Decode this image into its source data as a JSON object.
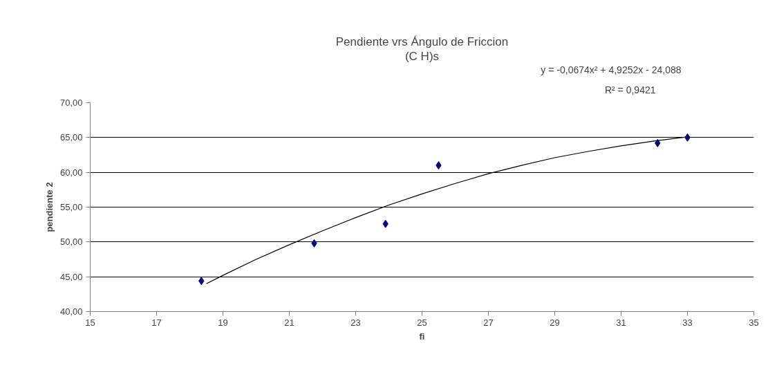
{
  "chart_data": {
    "type": "scatter",
    "title": "Pendiente vrs Ángulo de Friccion",
    "subtitle": "(C H)s",
    "xlabel": "fi",
    "ylabel": "pendiente 2",
    "annotations": [
      "y = -0,0674x² + 4,9252x - 24,088",
      "R² = 0,9421"
    ],
    "series": [
      {
        "color": "#000080",
        "marker": "diamond",
        "x": [
          18.35,
          21.75,
          23.9,
          25.5,
          32.1,
          33.0
        ],
        "values": [
          44.4,
          49.8,
          52.6,
          61.0,
          64.2,
          65.0
        ]
      },
      {
        "type": "line",
        "color": "#000000",
        "marker": "none",
        "line_style": "solid",
        "x": [
          18.5,
          19,
          20,
          21,
          22,
          23,
          24,
          25,
          26,
          27,
          28,
          29,
          30,
          31,
          32,
          33
        ],
        "values": [
          44.0,
          45.2,
          47.5,
          49.6,
          51.6,
          53.5,
          55.3,
          56.9,
          58.4,
          59.8,
          61.0,
          62.1,
          63.0,
          63.8,
          64.5,
          65.1
        ]
      }
    ],
    "xlim": [
      15,
      35
    ],
    "xticks": [
      15,
      17,
      19,
      21,
      23,
      25,
      27,
      29,
      31,
      33,
      35
    ],
    "ylim": [
      40,
      70
    ],
    "yticks": [
      {
        "value": 40,
        "label": "40,00"
      },
      {
        "value": 45,
        "label": "45,00"
      },
      {
        "value": 50,
        "label": "50,00"
      },
      {
        "value": 55,
        "label": "55,00"
      },
      {
        "value": 60,
        "label": "60,00"
      },
      {
        "value": 65,
        "label": "65,00"
      },
      {
        "value": 70,
        "label": "70,00"
      }
    ],
    "grid": "y"
  }
}
